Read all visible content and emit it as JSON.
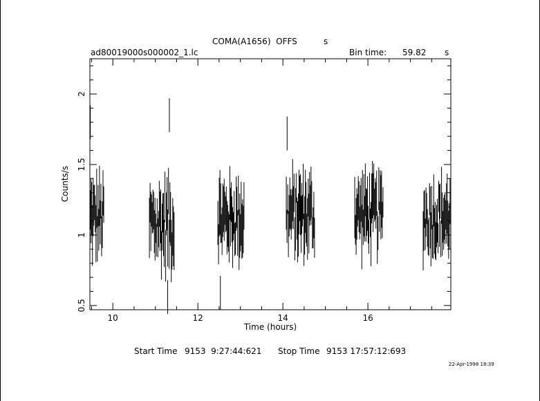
{
  "header": {
    "object": "COMA(A1656)  OFFS",
    "instrument": "s",
    "filename": "ad80019000s000002_1.lc",
    "bin_label": "Bin time:",
    "bin_value": "59.82",
    "bin_unit": "s"
  },
  "footer": {
    "start_label": "Start Time",
    "start_value": "9153  9:27:44:621",
    "stop_label": "Stop Time",
    "stop_value": "9153 17:57:12:693",
    "timestamp": "22-Apr-1998 18:39"
  },
  "chart_data": {
    "type": "line",
    "title": "COMA(A1656)  OFFS",
    "xlabel": "Time (hours)",
    "ylabel": "Counts/s",
    "xlim": [
      9.46,
      17.95
    ],
    "ylim": [
      0.47,
      2.25
    ],
    "xticks": [
      10,
      12,
      14,
      16
    ],
    "xtick_labels": [
      "10",
      "12",
      "14",
      "16"
    ],
    "yticks": [
      0.5,
      1,
      1.5,
      2
    ],
    "ytick_labels": [
      "0.5",
      "1",
      "1.5",
      "2"
    ],
    "grid": false,
    "style": "error-bar light curve (vertical bars at each time bin)",
    "segments": [
      {
        "start": 9.47,
        "end": 9.8,
        "center": 1.12,
        "spread": 0.42
      },
      {
        "start": 10.86,
        "end": 11.45,
        "center": 1.08,
        "spread": 0.52
      },
      {
        "start": 12.47,
        "end": 13.1,
        "center": 1.12,
        "spread": 0.42
      },
      {
        "start": 14.08,
        "end": 14.75,
        "center": 1.15,
        "spread": 0.43
      },
      {
        "start": 15.69,
        "end": 16.37,
        "center": 1.15,
        "spread": 0.4
      },
      {
        "start": 17.3,
        "end": 17.95,
        "center": 1.13,
        "spread": 0.4
      }
    ],
    "notable_points": [
      {
        "x": 9.47,
        "y": 1.8
      },
      {
        "x": 11.33,
        "y": 1.85
      },
      {
        "x": 11.29,
        "y": 0.56
      },
      {
        "x": 14.1,
        "y": 1.72
      },
      {
        "x": 12.53,
        "y": 0.59
      }
    ]
  }
}
